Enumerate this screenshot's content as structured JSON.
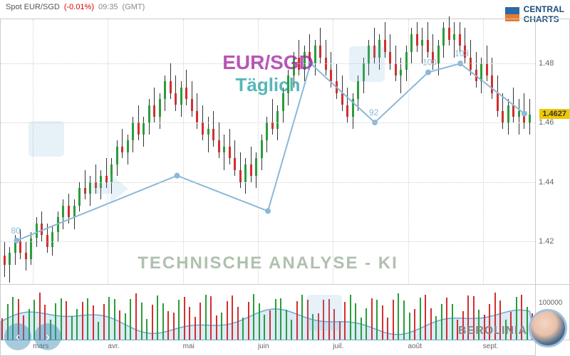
{
  "header": {
    "pair_label": "Spot EUR/SGD",
    "change": "(-0.01%)",
    "time": "09:35",
    "tz": "(GMT)"
  },
  "logo": {
    "line1": "CENTRAL",
    "line2": "CHARTS"
  },
  "title": {
    "line1": "EUR/SGD",
    "line2": "Täglich"
  },
  "subtitle": "TECHNISCHE  ANALYSE - KI",
  "watermark": "BEROLINIA",
  "price_chart": {
    "type": "candlestick",
    "ylim": [
      1.405,
      1.495
    ],
    "yticks": [
      1.42,
      1.44,
      1.46,
      1.48
    ],
    "ytick_labels": [
      "1.42",
      "1.44",
      "1.46",
      "1.48"
    ],
    "current_price": 1.4627,
    "current_price_label": "1.4627",
    "current_color": "#f0c800",
    "up_color": "#2a9d3a",
    "down_color": "#d03030",
    "wick_color": "#333333",
    "grid_color": "#d0d0d0",
    "background_color": "#ffffff",
    "overlay_line_color": "#8ab8d8",
    "overlay_points": [
      {
        "x": 0.03,
        "y": 1.42,
        "label": "80"
      },
      {
        "x": 0.33,
        "y": 1.442
      },
      {
        "x": 0.5,
        "y": 1.43
      },
      {
        "x": 0.58,
        "y": 1.48
      },
      {
        "x": 0.7,
        "y": 1.46,
        "label": "92"
      },
      {
        "x": 0.8,
        "y": 1.477,
        "label": "100"
      },
      {
        "x": 0.86,
        "y": 1.48,
        "label": "103"
      },
      {
        "x": 0.98,
        "y": 1.463
      }
    ],
    "candles": [
      {
        "x": 0.005,
        "o": 1.415,
        "h": 1.42,
        "l": 1.408,
        "c": 1.412
      },
      {
        "x": 0.015,
        "o": 1.412,
        "h": 1.418,
        "l": 1.406,
        "c": 1.416
      },
      {
        "x": 0.025,
        "o": 1.416,
        "h": 1.422,
        "l": 1.412,
        "c": 1.42
      },
      {
        "x": 0.035,
        "o": 1.42,
        "h": 1.424,
        "l": 1.414,
        "c": 1.416
      },
      {
        "x": 0.045,
        "o": 1.416,
        "h": 1.42,
        "l": 1.41,
        "c": 1.414
      },
      {
        "x": 0.055,
        "o": 1.414,
        "h": 1.423,
        "l": 1.412,
        "c": 1.421
      },
      {
        "x": 0.065,
        "o": 1.421,
        "h": 1.428,
        "l": 1.418,
        "c": 1.426
      },
      {
        "x": 0.075,
        "o": 1.426,
        "h": 1.43,
        "l": 1.42,
        "c": 1.422
      },
      {
        "x": 0.085,
        "o": 1.422,
        "h": 1.426,
        "l": 1.416,
        "c": 1.418
      },
      {
        "x": 0.095,
        "o": 1.418,
        "h": 1.425,
        "l": 1.415,
        "c": 1.423
      },
      {
        "x": 0.105,
        "o": 1.423,
        "h": 1.43,
        "l": 1.42,
        "c": 1.428
      },
      {
        "x": 0.115,
        "o": 1.428,
        "h": 1.434,
        "l": 1.424,
        "c": 1.432
      },
      {
        "x": 0.125,
        "o": 1.432,
        "h": 1.436,
        "l": 1.426,
        "c": 1.428
      },
      {
        "x": 0.135,
        "o": 1.428,
        "h": 1.434,
        "l": 1.424,
        "c": 1.432
      },
      {
        "x": 0.145,
        "o": 1.432,
        "h": 1.44,
        "l": 1.43,
        "c": 1.438
      },
      {
        "x": 0.155,
        "o": 1.438,
        "h": 1.444,
        "l": 1.434,
        "c": 1.436
      },
      {
        "x": 0.165,
        "o": 1.436,
        "h": 1.442,
        "l": 1.432,
        "c": 1.44
      },
      {
        "x": 0.175,
        "o": 1.44,
        "h": 1.446,
        "l": 1.436,
        "c": 1.438
      },
      {
        "x": 0.185,
        "o": 1.438,
        "h": 1.444,
        "l": 1.434,
        "c": 1.442
      },
      {
        "x": 0.195,
        "o": 1.442,
        "h": 1.448,
        "l": 1.438,
        "c": 1.44
      },
      {
        "x": 0.205,
        "o": 1.44,
        "h": 1.448,
        "l": 1.436,
        "c": 1.446
      },
      {
        "x": 0.215,
        "o": 1.446,
        "h": 1.454,
        "l": 1.442,
        "c": 1.452
      },
      {
        "x": 0.225,
        "o": 1.452,
        "h": 1.458,
        "l": 1.448,
        "c": 1.45
      },
      {
        "x": 0.235,
        "o": 1.45,
        "h": 1.456,
        "l": 1.446,
        "c": 1.454
      },
      {
        "x": 0.245,
        "o": 1.454,
        "h": 1.462,
        "l": 1.45,
        "c": 1.46
      },
      {
        "x": 0.255,
        "o": 1.46,
        "h": 1.466,
        "l": 1.454,
        "c": 1.456
      },
      {
        "x": 0.265,
        "o": 1.456,
        "h": 1.462,
        "l": 1.452,
        "c": 1.46
      },
      {
        "x": 0.275,
        "o": 1.46,
        "h": 1.468,
        "l": 1.456,
        "c": 1.466
      },
      {
        "x": 0.285,
        "o": 1.466,
        "h": 1.472,
        "l": 1.46,
        "c": 1.462
      },
      {
        "x": 0.295,
        "o": 1.462,
        "h": 1.47,
        "l": 1.458,
        "c": 1.468
      },
      {
        "x": 0.305,
        "o": 1.468,
        "h": 1.476,
        "l": 1.464,
        "c": 1.474
      },
      {
        "x": 0.315,
        "o": 1.474,
        "h": 1.48,
        "l": 1.468,
        "c": 1.47
      },
      {
        "x": 0.325,
        "o": 1.47,
        "h": 1.476,
        "l": 1.464,
        "c": 1.466
      },
      {
        "x": 0.335,
        "o": 1.466,
        "h": 1.474,
        "l": 1.462,
        "c": 1.472
      },
      {
        "x": 0.345,
        "o": 1.472,
        "h": 1.478,
        "l": 1.466,
        "c": 1.468
      },
      {
        "x": 0.355,
        "o": 1.468,
        "h": 1.474,
        "l": 1.462,
        "c": 1.464
      },
      {
        "x": 0.365,
        "o": 1.464,
        "h": 1.47,
        "l": 1.458,
        "c": 1.46
      },
      {
        "x": 0.375,
        "o": 1.46,
        "h": 1.466,
        "l": 1.454,
        "c": 1.456
      },
      {
        "x": 0.385,
        "o": 1.456,
        "h": 1.462,
        "l": 1.45,
        "c": 1.458
      },
      {
        "x": 0.395,
        "o": 1.458,
        "h": 1.464,
        "l": 1.452,
        "c": 1.454
      },
      {
        "x": 0.405,
        "o": 1.454,
        "h": 1.46,
        "l": 1.448,
        "c": 1.45
      },
      {
        "x": 0.415,
        "o": 1.45,
        "h": 1.456,
        "l": 1.444,
        "c": 1.452
      },
      {
        "x": 0.425,
        "o": 1.452,
        "h": 1.458,
        "l": 1.446,
        "c": 1.448
      },
      {
        "x": 0.435,
        "o": 1.448,
        "h": 1.454,
        "l": 1.442,
        "c": 1.444
      },
      {
        "x": 0.445,
        "o": 1.444,
        "h": 1.45,
        "l": 1.438,
        "c": 1.44
      },
      {
        "x": 0.455,
        "o": 1.44,
        "h": 1.448,
        "l": 1.436,
        "c": 1.446
      },
      {
        "x": 0.465,
        "o": 1.446,
        "h": 1.452,
        "l": 1.44,
        "c": 1.442
      },
      {
        "x": 0.475,
        "o": 1.442,
        "h": 1.45,
        "l": 1.438,
        "c": 1.448
      },
      {
        "x": 0.485,
        "o": 1.448,
        "h": 1.456,
        "l": 1.444,
        "c": 1.454
      },
      {
        "x": 0.495,
        "o": 1.454,
        "h": 1.462,
        "l": 1.45,
        "c": 1.46
      },
      {
        "x": 0.505,
        "o": 1.46,
        "h": 1.468,
        "l": 1.456,
        "c": 1.458
      },
      {
        "x": 0.515,
        "o": 1.458,
        "h": 1.466,
        "l": 1.454,
        "c": 1.464
      },
      {
        "x": 0.525,
        "o": 1.464,
        "h": 1.472,
        "l": 1.46,
        "c": 1.47
      },
      {
        "x": 0.535,
        "o": 1.47,
        "h": 1.478,
        "l": 1.466,
        "c": 1.476
      },
      {
        "x": 0.545,
        "o": 1.476,
        "h": 1.484,
        "l": 1.472,
        "c": 1.482
      },
      {
        "x": 0.555,
        "o": 1.482,
        "h": 1.488,
        "l": 1.476,
        "c": 1.478
      },
      {
        "x": 0.565,
        "o": 1.478,
        "h": 1.486,
        "l": 1.474,
        "c": 1.484
      },
      {
        "x": 0.575,
        "o": 1.484,
        "h": 1.49,
        "l": 1.478,
        "c": 1.48
      },
      {
        "x": 0.585,
        "o": 1.48,
        "h": 1.488,
        "l": 1.476,
        "c": 1.486
      },
      {
        "x": 0.595,
        "o": 1.486,
        "h": 1.492,
        "l": 1.48,
        "c": 1.482
      },
      {
        "x": 0.605,
        "o": 1.482,
        "h": 1.488,
        "l": 1.476,
        "c": 1.478
      },
      {
        "x": 0.615,
        "o": 1.478,
        "h": 1.484,
        "l": 1.472,
        "c": 1.474
      },
      {
        "x": 0.625,
        "o": 1.474,
        "h": 1.48,
        "l": 1.468,
        "c": 1.47
      },
      {
        "x": 0.635,
        "o": 1.47,
        "h": 1.476,
        "l": 1.464,
        "c": 1.466
      },
      {
        "x": 0.645,
        "o": 1.466,
        "h": 1.472,
        "l": 1.46,
        "c": 1.462
      },
      {
        "x": 0.655,
        "o": 1.462,
        "h": 1.47,
        "l": 1.458,
        "c": 1.468
      },
      {
        "x": 0.665,
        "o": 1.468,
        "h": 1.476,
        "l": 1.464,
        "c": 1.474
      },
      {
        "x": 0.675,
        "o": 1.474,
        "h": 1.482,
        "l": 1.47,
        "c": 1.48
      },
      {
        "x": 0.685,
        "o": 1.48,
        "h": 1.488,
        "l": 1.476,
        "c": 1.486
      },
      {
        "x": 0.695,
        "o": 1.486,
        "h": 1.492,
        "l": 1.48,
        "c": 1.482
      },
      {
        "x": 0.705,
        "o": 1.482,
        "h": 1.49,
        "l": 1.478,
        "c": 1.488
      },
      {
        "x": 0.715,
        "o": 1.488,
        "h": 1.494,
        "l": 1.482,
        "c": 1.484
      },
      {
        "x": 0.725,
        "o": 1.484,
        "h": 1.49,
        "l": 1.478,
        "c": 1.48
      },
      {
        "x": 0.735,
        "o": 1.48,
        "h": 1.486,
        "l": 1.474,
        "c": 1.476
      },
      {
        "x": 0.745,
        "o": 1.476,
        "h": 1.482,
        "l": 1.47,
        "c": 1.478
      },
      {
        "x": 0.755,
        "o": 1.478,
        "h": 1.486,
        "l": 1.474,
        "c": 1.484
      },
      {
        "x": 0.765,
        "o": 1.484,
        "h": 1.492,
        "l": 1.48,
        "c": 1.49
      },
      {
        "x": 0.775,
        "o": 1.49,
        "h": 1.494,
        "l": 1.484,
        "c": 1.486
      },
      {
        "x": 0.785,
        "o": 1.486,
        "h": 1.492,
        "l": 1.48,
        "c": 1.488
      },
      {
        "x": 0.795,
        "o": 1.488,
        "h": 1.494,
        "l": 1.482,
        "c": 1.484
      },
      {
        "x": 0.805,
        "o": 1.484,
        "h": 1.49,
        "l": 1.478,
        "c": 1.48
      },
      {
        "x": 0.815,
        "o": 1.48,
        "h": 1.488,
        "l": 1.476,
        "c": 1.486
      },
      {
        "x": 0.825,
        "o": 1.486,
        "h": 1.494,
        "l": 1.482,
        "c": 1.492
      },
      {
        "x": 0.835,
        "o": 1.492,
        "h": 1.496,
        "l": 1.486,
        "c": 1.488
      },
      {
        "x": 0.845,
        "o": 1.488,
        "h": 1.494,
        "l": 1.482,
        "c": 1.49
      },
      {
        "x": 0.855,
        "o": 1.49,
        "h": 1.494,
        "l": 1.484,
        "c": 1.486
      },
      {
        "x": 0.865,
        "o": 1.486,
        "h": 1.492,
        "l": 1.48,
        "c": 1.482
      },
      {
        "x": 0.875,
        "o": 1.482,
        "h": 1.488,
        "l": 1.476,
        "c": 1.478
      },
      {
        "x": 0.885,
        "o": 1.478,
        "h": 1.484,
        "l": 1.472,
        "c": 1.474
      },
      {
        "x": 0.895,
        "o": 1.474,
        "h": 1.482,
        "l": 1.47,
        "c": 1.48
      },
      {
        "x": 0.905,
        "o": 1.48,
        "h": 1.486,
        "l": 1.474,
        "c": 1.476
      },
      {
        "x": 0.915,
        "o": 1.476,
        "h": 1.482,
        "l": 1.468,
        "c": 1.47
      },
      {
        "x": 0.925,
        "o": 1.47,
        "h": 1.476,
        "l": 1.462,
        "c": 1.464
      },
      {
        "x": 0.935,
        "o": 1.464,
        "h": 1.47,
        "l": 1.458,
        "c": 1.46
      },
      {
        "x": 0.945,
        "o": 1.46,
        "h": 1.468,
        "l": 1.456,
        "c": 1.466
      },
      {
        "x": 0.955,
        "o": 1.466,
        "h": 1.472,
        "l": 1.46,
        "c": 1.462
      },
      {
        "x": 0.965,
        "o": 1.462,
        "h": 1.468,
        "l": 1.456,
        "c": 1.464
      },
      {
        "x": 0.975,
        "o": 1.464,
        "h": 1.47,
        "l": 1.458,
        "c": 1.46
      },
      {
        "x": 0.985,
        "o": 1.46,
        "h": 1.468,
        "l": 1.456,
        "c": 1.4627
      }
    ]
  },
  "volume_chart": {
    "type": "bar",
    "ylim": [
      0,
      150000
    ],
    "ytick": 100000,
    "ytick_label": "100000",
    "area_fill_color": "#b8d8f0",
    "area_line_color": "#6aa8d0",
    "colors": [
      "#2a9d3a",
      "#d03030"
    ],
    "n_bars": 100
  },
  "x_axis": {
    "ticks": [
      {
        "x": 0.06,
        "label": "mars"
      },
      {
        "x": 0.2,
        "label": "avr."
      },
      {
        "x": 0.34,
        "label": "mai"
      },
      {
        "x": 0.48,
        "label": "juin"
      },
      {
        "x": 0.62,
        "label": "juil."
      },
      {
        "x": 0.76,
        "label": "août"
      },
      {
        "x": 0.9,
        "label": "sept."
      }
    ]
  }
}
